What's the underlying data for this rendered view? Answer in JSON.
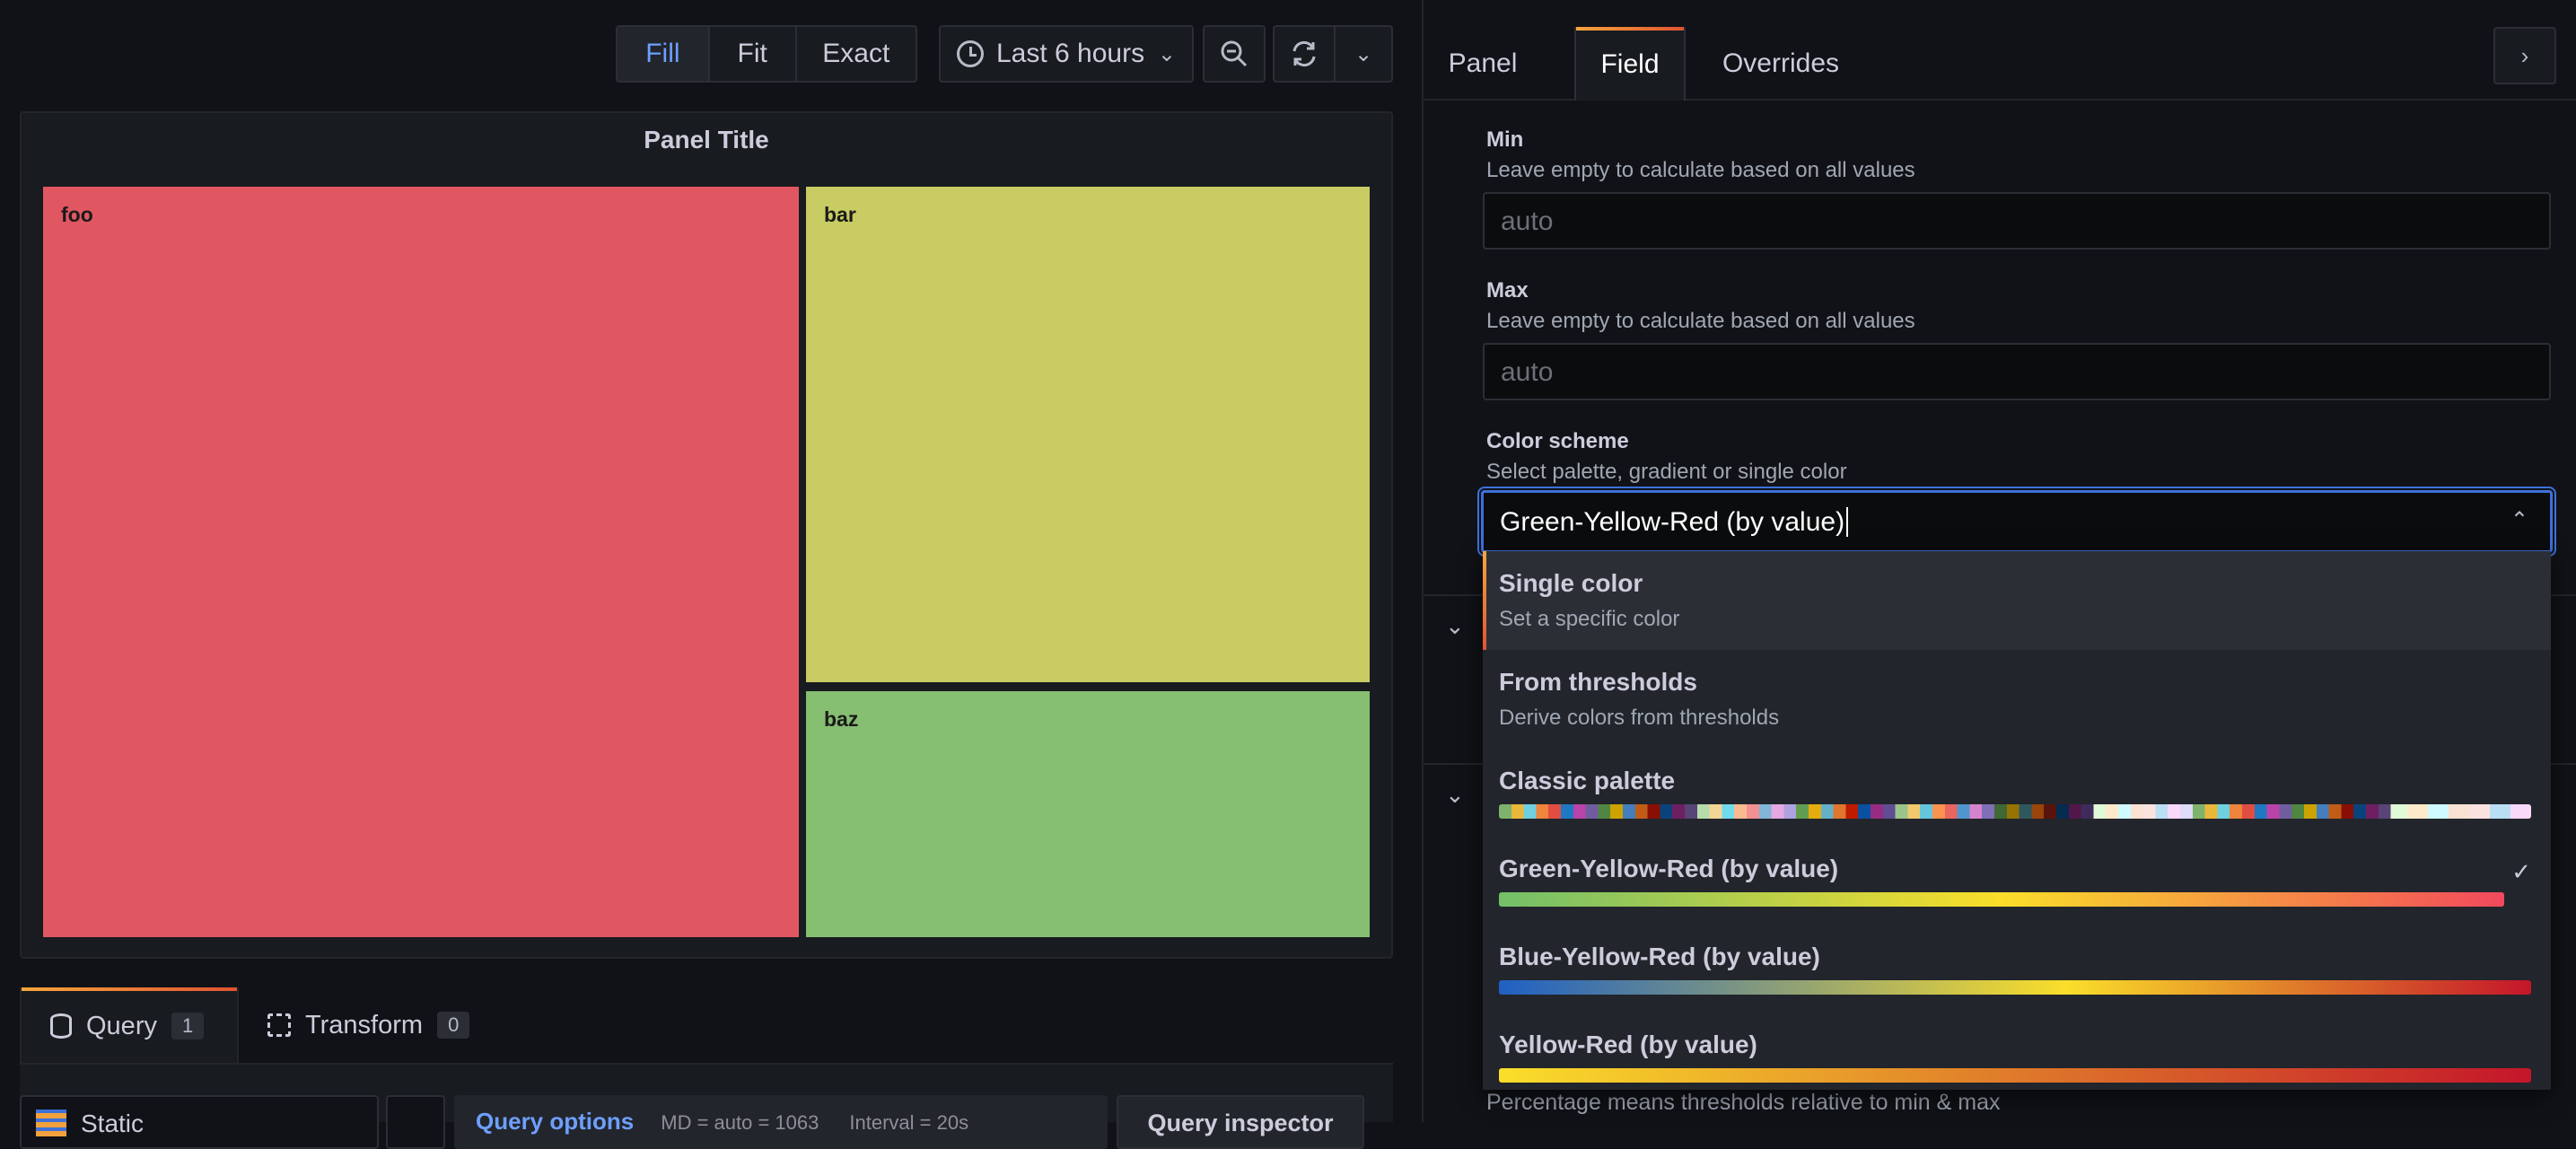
{
  "toolbar": {
    "fit_modes": [
      {
        "label": "Fill",
        "active": true
      },
      {
        "label": "Fit",
        "active": false
      },
      {
        "label": "Exact",
        "active": false
      }
    ],
    "time_range": "Last 6 hours",
    "icons": [
      "clock-icon",
      "chevron-down-icon",
      "zoom-out-icon",
      "refresh-icon",
      "chevron-down-icon"
    ]
  },
  "panel": {
    "title": "Panel Title",
    "tiles": [
      {
        "label": "foo",
        "color": "#e15761"
      },
      {
        "label": "bar",
        "color": "#c8cc62"
      },
      {
        "label": "baz",
        "color": "#86be72"
      }
    ]
  },
  "query_tabs": [
    {
      "label": "Query",
      "count": "1",
      "active": true
    },
    {
      "label": "Transform",
      "count": "0",
      "active": false
    }
  ],
  "query_bar": {
    "datasource": "Static",
    "options_label": "Query options",
    "md": "MD = auto = 1063",
    "interval": "Interval = 20s",
    "inspector": "Query inspector"
  },
  "editor_tabs": [
    {
      "label": "Panel",
      "active": false
    },
    {
      "label": "Field",
      "active": true
    },
    {
      "label": "Overrides",
      "active": false
    }
  ],
  "fields": {
    "min": {
      "label": "Min",
      "description": "Leave empty to calculate based on all values",
      "placeholder": "auto"
    },
    "max": {
      "label": "Max",
      "description": "Leave empty to calculate based on all values",
      "placeholder": "auto"
    },
    "color_scheme": {
      "label": "Color scheme",
      "description": "Select palette, gradient or single color",
      "value": "Green-Yellow-Red (by value)"
    }
  },
  "color_options": [
    {
      "title": "Single color",
      "description": "Set a specific color",
      "highlighted": true
    },
    {
      "title": "From thresholds",
      "description": "Derive colors from thresholds"
    },
    {
      "title": "Classic palette",
      "palette": "classic"
    },
    {
      "title": "Green-Yellow-Red (by value)",
      "palette": "gyr",
      "selected": true
    },
    {
      "title": "Blue-Yellow-Red (by value)",
      "palette": "byr"
    },
    {
      "title": "Yellow-Red (by value)",
      "palette": "yr"
    }
  ],
  "background_footnote": "Percentage means thresholds relative to min & max",
  "colors": {
    "accent_blue": "#3d71d9",
    "link_blue": "#6e9fff",
    "tab_gradient_start": "#f7a53b",
    "tab_gradient_end": "#e05432"
  }
}
